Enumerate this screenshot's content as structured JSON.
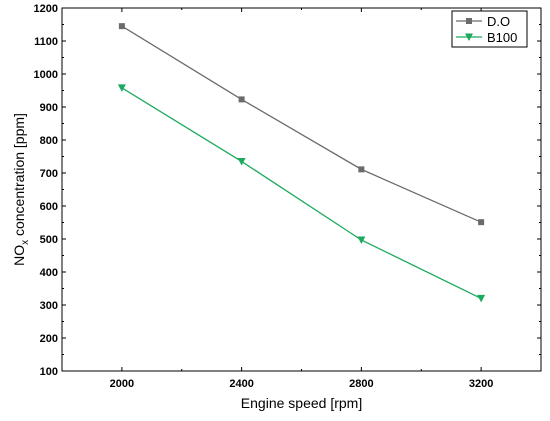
{
  "chart_data": {
    "type": "line",
    "title": "",
    "x": [
      2000,
      2400,
      2800,
      3200
    ],
    "x_ticks": [
      2000,
      2400,
      2800,
      3200
    ],
    "xlabel": "Engine speed [rpm]",
    "xlim": [
      1800,
      3400
    ],
    "ylabel": {
      "main": "NO",
      "sub": "x",
      "rest": " concentration [ppm]"
    },
    "ylim": [
      100,
      1200
    ],
    "y_ticks": [
      100,
      200,
      300,
      400,
      500,
      600,
      700,
      800,
      900,
      1000,
      1100,
      1200
    ],
    "grid": false,
    "legend_position": "top-right",
    "series": [
      {
        "name": "D.O",
        "values": [
          1145,
          923,
          711,
          551
        ],
        "color": "#6b6b6b",
        "marker": "square"
      },
      {
        "name": "B100",
        "values": [
          958,
          735,
          497,
          320
        ],
        "color": "#1aaa5e",
        "marker": "triangle-down"
      }
    ]
  }
}
